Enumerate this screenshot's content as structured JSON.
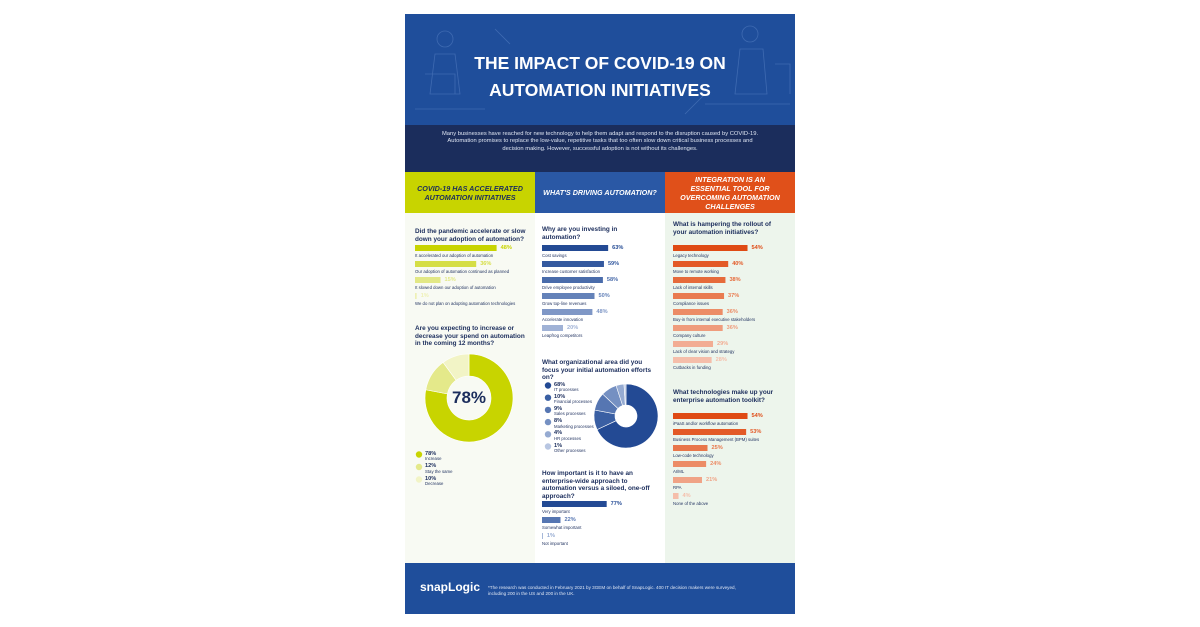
{
  "header": {
    "title": "THE IMPACT OF COVID-19 ON AUTOMATION INITIATIVES",
    "intro": "Many businesses have reached for new technology to help them adapt and respond to the disruption caused by COVID-19. Automation promises to replace the low-value, repetitive tasks that too often slow down critical business processes and decision making. However, successful adoption is not without its challenges."
  },
  "columns": [
    {
      "heading": "COVID-19 HAS ACCELERATED AUTOMATION INITIATIVES",
      "questions": [
        {
          "question": "Did the pandemic accelerate or slow down your adoption of automation?",
          "kind": "bars",
          "items": [
            {
              "label": "It accelerated our adoption of automation",
              "value": 48,
              "value_label": "48%",
              "color": "#c8d400"
            },
            {
              "label": "Our adoption of automation continued as planned",
              "value": 36,
              "value_label": "36%",
              "color": "#d5de45"
            },
            {
              "label": "It slowed down our adoption of automation",
              "value": 15,
              "value_label": "15%",
              "color": "#e2e885"
            },
            {
              "label": "We do not plan on adopting automation technologies",
              "value": 1,
              "value_label": "1%",
              "color": "#eef0b5"
            }
          ]
        },
        {
          "question": "Are you expecting to increase or decrease your spend on automation in the coming 12 months?",
          "kind": "donut",
          "items": [
            {
              "label": "Increase",
              "value": 78,
              "value_label": "78%",
              "color": "#c8d400"
            },
            {
              "label": "Stay the same",
              "value": 12,
              "value_label": "12%",
              "color": "#e4e98a"
            },
            {
              "label": "Decrease",
              "value": 10,
              "value_label": "10%",
              "color": "#f2f4c6"
            }
          ]
        }
      ]
    },
    {
      "heading": "WHAT'S DRIVING AUTOMATION?",
      "questions": [
        {
          "question": "Why are you investing in automation?",
          "kind": "bars",
          "items": [
            {
              "label": "Cost savings",
              "value": 63,
              "value_label": "63%",
              "color": "#234a94"
            },
            {
              "label": "Increase customer satisfaction",
              "value": 59,
              "value_label": "59%",
              "color": "#34599f"
            },
            {
              "label": "Drive employee productivity",
              "value": 58,
              "value_label": "58%",
              "color": "#4a6cab"
            },
            {
              "label": "Grow top-line revenues",
              "value": 50,
              "value_label": "50%",
              "color": "#6482b9"
            },
            {
              "label": "Accelerate innovation",
              "value": 48,
              "value_label": "48%",
              "color": "#7f97c6"
            },
            {
              "label": "Leapfrog competitors",
              "value": 20,
              "value_label": "20%",
              "color": "#a0b2d6"
            }
          ]
        },
        {
          "question": "What organizational area did you focus your initial automation efforts on?",
          "kind": "donut",
          "items": [
            {
              "label": "IT processes",
              "value": 68,
              "value_label": "68%",
              "color": "#234a94"
            },
            {
              "label": "Financial processes",
              "value": 10,
              "value_label": "10%",
              "color": "#3a5fa3"
            },
            {
              "label": "Sales processes",
              "value": 9,
              "value_label": "9%",
              "color": "#5676b2"
            },
            {
              "label": "Marketing processes",
              "value": 8,
              "value_label": "8%",
              "color": "#7590c2"
            },
            {
              "label": "HR processes",
              "value": 4,
              "value_label": "4%",
              "color": "#96abd2"
            },
            {
              "label": "Other processes",
              "value": 1,
              "value_label": "1%",
              "color": "#b8c6e2"
            }
          ]
        },
        {
          "question": "How important is it to have an enterprise-wide approach to automation versus a siloed, one-off approach?",
          "kind": "bars",
          "items": [
            {
              "label": "Very important",
              "value": 77,
              "value_label": "77%",
              "color": "#234a94"
            },
            {
              "label": "Somewhat important",
              "value": 22,
              "value_label": "22%",
              "color": "#5676b2"
            },
            {
              "label": "Not important",
              "value": 1,
              "value_label": "1%",
              "color": "#96abd2"
            }
          ]
        }
      ]
    },
    {
      "heading": "INTEGRATION IS AN ESSENTIAL TOOL FOR OVERCOMING AUTOMATION CHALLENGES",
      "questions": [
        {
          "question": "What is hampering the rollout of your automation initiatives?",
          "kind": "bars",
          "items": [
            {
              "label": "Legacy technology",
              "value": 54,
              "value_label": "54%",
              "color": "#df4a14"
            },
            {
              "label": "Move to remote working",
              "value": 40,
              "value_label": "40%",
              "color": "#e35a27"
            },
            {
              "label": "Lack of internal skills",
              "value": 38,
              "value_label": "38%",
              "color": "#e66b3b"
            },
            {
              "label": "Compliance issues",
              "value": 37,
              "value_label": "37%",
              "color": "#e97b50"
            },
            {
              "label": "Buy-in from internal executive stakeholders",
              "value": 36,
              "value_label": "36%",
              "color": "#ec8c66"
            },
            {
              "label": "Company culture",
              "value": 36,
              "value_label": "36%",
              "color": "#ef9c7c"
            },
            {
              "label": "Lack of clear vision and strategy",
              "value": 29,
              "value_label": "29%",
              "color": "#f2ad93"
            },
            {
              "label": "Cutbacks in funding",
              "value": 28,
              "value_label": "28%",
              "color": "#f5beaa"
            }
          ]
        },
        {
          "question": "What technologies make up your enterprise automation toolkit?",
          "kind": "bars",
          "items": [
            {
              "label": "iPaaS and/or workflow automation",
              "value": 54,
              "value_label": "54%",
              "color": "#df4a14"
            },
            {
              "label": "Business Process Management (BPM) suites",
              "value": 53,
              "value_label": "53%",
              "color": "#e35a27"
            },
            {
              "label": "Low-code technology",
              "value": 25,
              "value_label": "25%",
              "color": "#e8764a"
            },
            {
              "label": "AI/ML",
              "value": 24,
              "value_label": "24%",
              "color": "#ec8c66"
            },
            {
              "label": "RPA",
              "value": 21,
              "value_label": "21%",
              "color": "#f0a386"
            },
            {
              "label": "None of the above",
              "value": 4,
              "value_label": "4%",
              "color": "#f5beaa"
            }
          ]
        }
      ]
    }
  ],
  "footer": {
    "logo": "snapLogic",
    "note": "*The research was conducted in February 2021 by 3GEM on behalf of SnapLogic. 400 IT decision makers were surveyed, including 200 in the US and 200 in the UK."
  }
}
